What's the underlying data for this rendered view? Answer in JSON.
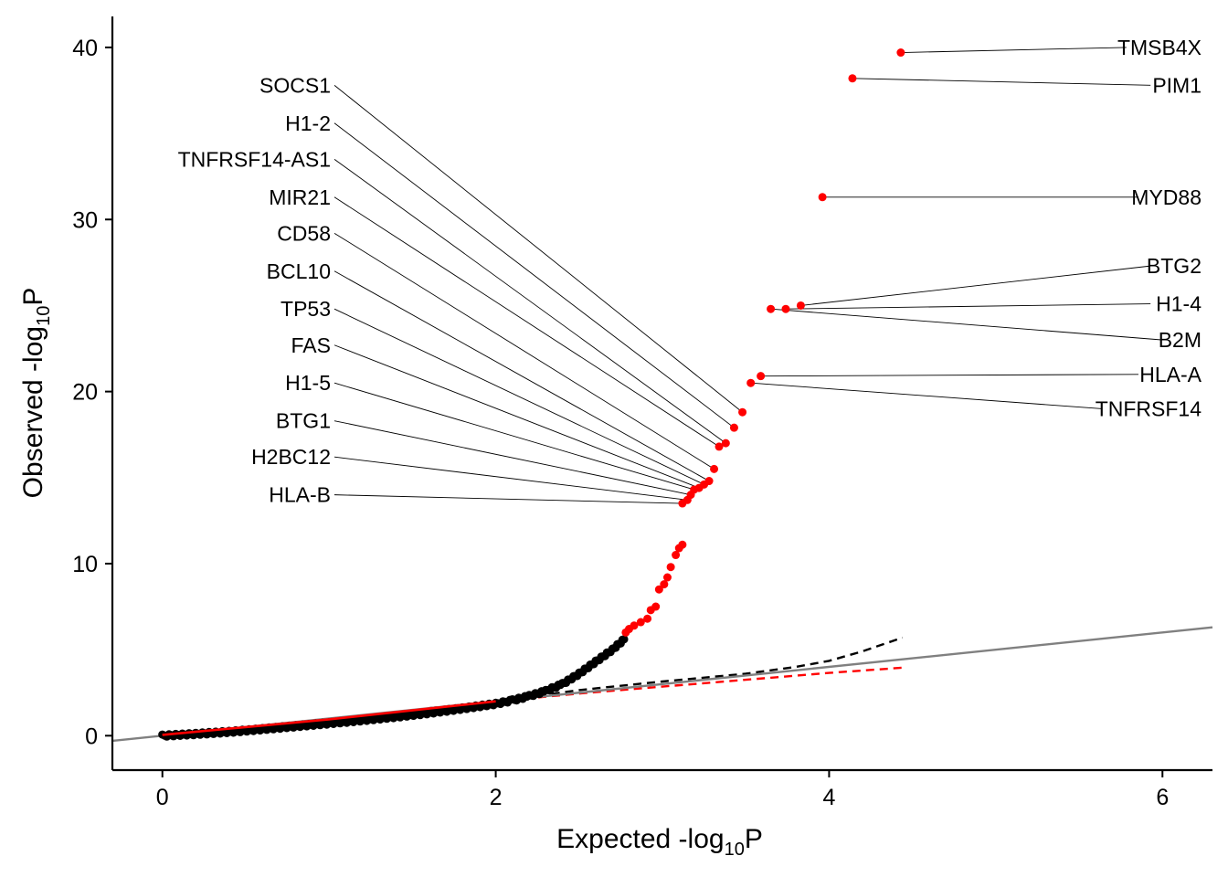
{
  "chart_data": {
    "type": "scatter",
    "subtype": "qq-plot",
    "xlabel": {
      "main": "Expected -log",
      "sub": "10",
      "tail": "P"
    },
    "ylabel": {
      "main": "Observed -log",
      "sub": "10",
      "tail": "P"
    },
    "xlim": [
      -0.3,
      6.3
    ],
    "ylim": [
      -2.0,
      41.8
    ],
    "xticks": [
      0,
      2,
      4,
      6
    ],
    "yticks": [
      0,
      10,
      20,
      30,
      40
    ],
    "grid": false,
    "colors": {
      "significant": "#ff0000",
      "nonsignificant": "#000000",
      "identity_line": "#808080",
      "envelope_black": "#000000",
      "envelope_red": "#ff0000"
    },
    "identity_line": {
      "slope": 1,
      "intercept": 0
    },
    "black_points_curve": [
      [
        0.0,
        0.0
      ],
      [
        0.2,
        0.1
      ],
      [
        0.4,
        0.22
      ],
      [
        0.6,
        0.38
      ],
      [
        0.8,
        0.55
      ],
      [
        1.0,
        0.72
      ],
      [
        1.2,
        0.9
      ],
      [
        1.4,
        1.1
      ],
      [
        1.6,
        1.32
      ],
      [
        1.8,
        1.58
      ],
      [
        2.0,
        1.85
      ],
      [
        2.1,
        2.05
      ],
      [
        2.2,
        2.3
      ],
      [
        2.3,
        2.6
      ],
      [
        2.4,
        3.0
      ],
      [
        2.5,
        3.6
      ],
      [
        2.6,
        4.3
      ],
      [
        2.7,
        5.0
      ],
      [
        2.77,
        5.6
      ]
    ],
    "red_lower_line": [
      [
        0.0,
        0.05
      ],
      [
        1.0,
        0.95
      ],
      [
        2.0,
        2.0
      ]
    ],
    "red_points": [
      [
        2.78,
        6.0
      ],
      [
        2.8,
        6.2
      ],
      [
        2.83,
        6.4
      ],
      [
        2.87,
        6.6
      ],
      [
        2.91,
        6.8
      ],
      [
        2.93,
        7.3
      ],
      [
        2.96,
        7.5
      ],
      [
        2.98,
        8.5
      ],
      [
        3.01,
        8.8
      ],
      [
        3.03,
        9.2
      ],
      [
        3.05,
        9.8
      ],
      [
        3.08,
        10.5
      ],
      [
        3.1,
        10.9
      ],
      [
        3.12,
        11.1
      ]
    ],
    "labeled_points": [
      {
        "label": "TMSB4X",
        "x": 4.43,
        "y": 39.7,
        "side": "right",
        "label_y": 40.0
      },
      {
        "label": "PIM1",
        "x": 4.14,
        "y": 38.2,
        "side": "right",
        "label_y": 37.8
      },
      {
        "label": "MYD88",
        "x": 3.96,
        "y": 31.3,
        "side": "right",
        "label_y": 31.3
      },
      {
        "label": "BTG2",
        "x": 3.83,
        "y": 25.0,
        "side": "right",
        "label_y": 27.3
      },
      {
        "label": "H1-4",
        "x": 3.74,
        "y": 24.8,
        "side": "right",
        "label_y": 25.1
      },
      {
        "label": "B2M",
        "x": 3.65,
        "y": 24.8,
        "side": "right",
        "label_y": 23.0
      },
      {
        "label": "HLA-A",
        "x": 3.59,
        "y": 20.9,
        "side": "right",
        "label_y": 21.0
      },
      {
        "label": "TNFRSF14",
        "x": 3.53,
        "y": 20.5,
        "side": "right",
        "label_y": 19.0
      },
      {
        "label": "SOCS1",
        "x": 3.48,
        "y": 18.8,
        "side": "left",
        "label_y": 37.8
      },
      {
        "label": "H1-2",
        "x": 3.43,
        "y": 17.9,
        "side": "left",
        "label_y": 35.6
      },
      {
        "label": "TNFRSF14-AS1",
        "x": 3.38,
        "y": 17.0,
        "side": "left",
        "label_y": 33.5
      },
      {
        "label": "MIR21",
        "x": 3.34,
        "y": 16.8,
        "side": "left",
        "label_y": 31.3
      },
      {
        "label": "CD58",
        "x": 3.31,
        "y": 15.5,
        "side": "left",
        "label_y": 29.2
      },
      {
        "label": "BCL10",
        "x": 3.28,
        "y": 14.8,
        "side": "left",
        "label_y": 27.0
      },
      {
        "label": "TP53",
        "x": 3.25,
        "y": 14.6,
        "side": "left",
        "label_y": 24.8
      },
      {
        "label": "FAS",
        "x": 3.22,
        "y": 14.4,
        "side": "left",
        "label_y": 22.7
      },
      {
        "label": "H1-5",
        "x": 3.19,
        "y": 14.3,
        "side": "left",
        "label_y": 20.5
      },
      {
        "label": "BTG1",
        "x": 3.17,
        "y": 14.0,
        "side": "left",
        "label_y": 18.3
      },
      {
        "label": "H2BC12",
        "x": 3.15,
        "y": 13.7,
        "side": "left",
        "label_y": 16.2
      },
      {
        "label": "HLA-B",
        "x": 3.12,
        "y": 13.5,
        "side": "left",
        "label_y": 14.0
      }
    ],
    "envelope_black": [
      [
        1.6,
        1.6
      ],
      [
        2.0,
        2.0
      ],
      [
        2.5,
        2.65
      ],
      [
        3.0,
        3.15
      ],
      [
        3.5,
        3.6
      ],
      [
        3.8,
        4.0
      ],
      [
        4.0,
        4.35
      ],
      [
        4.2,
        4.9
      ],
      [
        4.44,
        5.7
      ]
    ],
    "envelope_red": [
      [
        1.6,
        1.6
      ],
      [
        2.0,
        2.0
      ],
      [
        2.5,
        2.45
      ],
      [
        3.0,
        2.85
      ],
      [
        3.5,
        3.25
      ],
      [
        4.0,
        3.65
      ],
      [
        4.44,
        3.95
      ]
    ]
  }
}
